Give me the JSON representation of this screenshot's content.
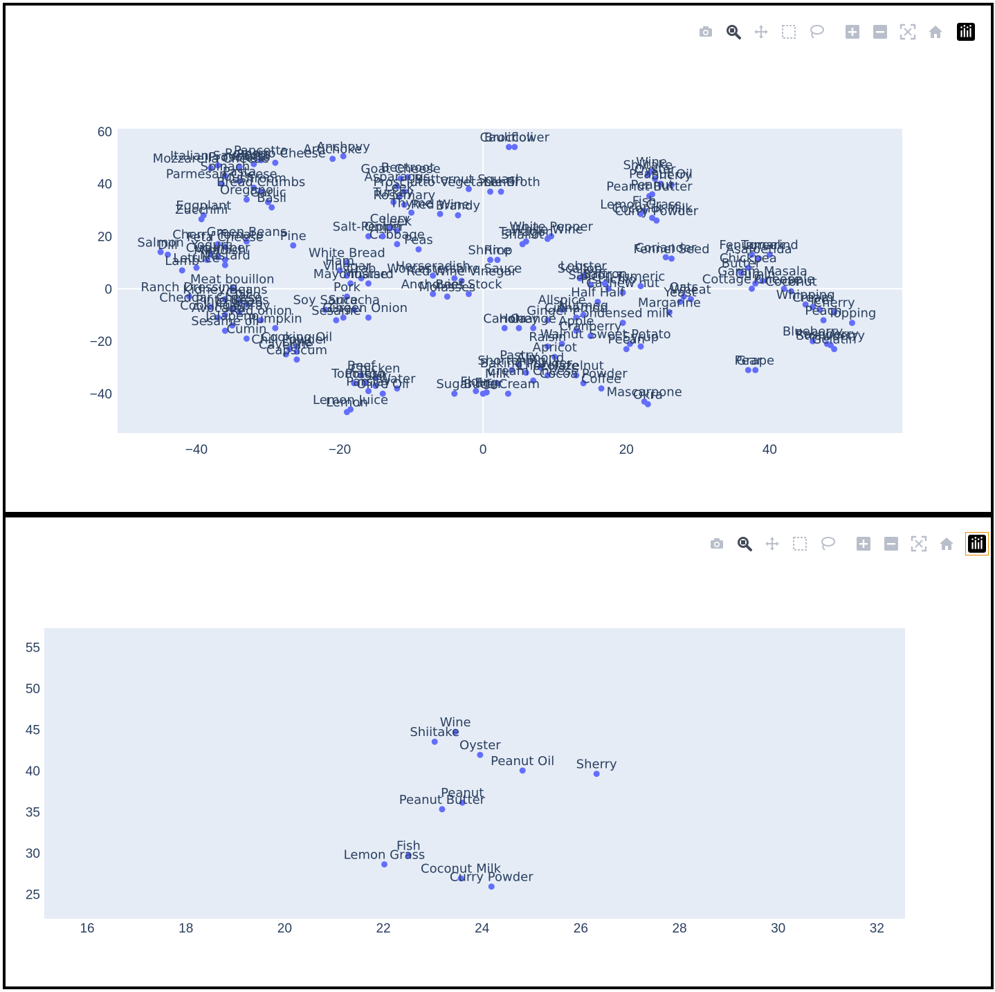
{
  "modebar": {
    "top": [
      "camera-icon",
      "zoom-icon",
      "pan-icon",
      "box-select-icon",
      "lasso-select-icon",
      "zoom-in-icon",
      "zoom-out-icon",
      "autoscale-icon",
      "reset-axes-icon",
      "plotly-logo-icon"
    ],
    "bottom": [
      "camera-icon",
      "zoom-icon",
      "pan-icon",
      "box-select-icon",
      "lasso-select-icon",
      "zoom-in-icon",
      "zoom-out-icon",
      "autoscale-icon",
      "reset-axes-icon",
      "plotly-logo-icon"
    ]
  },
  "colors": {
    "plot_bg": "#e5ecf6",
    "marker": "#636efa",
    "text": "#2a3f5f",
    "grid": "#ffffff",
    "modebar_icon": "#b9bfca",
    "modebar_active": "#444a58",
    "logo_bg": "#000000",
    "logo_border": "#e68a00"
  },
  "chart_data": [
    {
      "type": "scatter",
      "title": "",
      "xlabel": "",
      "ylabel": "",
      "xlim": [
        -51,
        58.5
      ],
      "ylim": [
        -55,
        61
      ],
      "xticks": [
        -40,
        -20,
        0,
        20,
        40
      ],
      "yticks": [
        -40,
        -20,
        0,
        20,
        40,
        60
      ],
      "grid": "zero lines",
      "points": [
        {
          "label": "Broccoli",
          "x": 3.6,
          "y": 54
        },
        {
          "label": "Cauliflower",
          "x": 4.4,
          "y": 54
        },
        {
          "label": "Anchovy",
          "x": -19.5,
          "y": 50.5
        },
        {
          "label": "Artichoke",
          "x": -21,
          "y": 49.5
        },
        {
          "label": "Pancetta",
          "x": -31,
          "y": 49
        },
        {
          "label": "Romano Cheese",
          "x": -29,
          "y": 48
        },
        {
          "label": "Pesto",
          "x": -32,
          "y": 47.5
        },
        {
          "label": "Italian Sausage",
          "x": -37,
          "y": 47
        },
        {
          "label": "Prosciutto",
          "x": -34,
          "y": 46.5
        },
        {
          "label": "Mozzarella Cheese",
          "x": -38,
          "y": 46
        },
        {
          "label": "Spinach",
          "x": -36,
          "y": 43
        },
        {
          "label": "Pasta",
          "x": -34,
          "y": 41
        },
        {
          "label": "Mushroom",
          "x": -32,
          "y": 38.5
        },
        {
          "label": "Parmesan Cheese",
          "x": -36.5,
          "y": 40
        },
        {
          "label": "Bread Crumbs",
          "x": -31,
          "y": 37
        },
        {
          "label": "Oregano",
          "x": -33,
          "y": 34
        },
        {
          "label": "Garlic",
          "x": -30,
          "y": 33
        },
        {
          "label": "Basil",
          "x": -29.5,
          "y": 31
        },
        {
          "label": "Eggplant",
          "x": -39,
          "y": 28
        },
        {
          "label": "Zucchini",
          "x": -39.3,
          "y": 26.5
        },
        {
          "label": "Goat Cheese",
          "x": -11.5,
          "y": 42
        },
        {
          "label": "Beetroot",
          "x": -10.5,
          "y": 42.5
        },
        {
          "label": "Asparagus",
          "x": -12,
          "y": 39
        },
        {
          "label": "Prosciutto",
          "x": -11,
          "y": 37
        },
        {
          "label": "Butternut Squash",
          "x": -2,
          "y": 38
        },
        {
          "label": "Vegetable Broth",
          "x": 1,
          "y": 37
        },
        {
          "label": "Lentil",
          "x": 2.5,
          "y": 37
        },
        {
          "label": "Leek",
          "x": -11.7,
          "y": 35
        },
        {
          "label": "Turkey",
          "x": -12.5,
          "y": 33
        },
        {
          "label": "Rosemary",
          "x": -11,
          "y": 32
        },
        {
          "label": "Thyme",
          "x": -10,
          "y": 29
        },
        {
          "label": "Red Wine",
          "x": -6,
          "y": 28.5
        },
        {
          "label": "Brandy",
          "x": -3.5,
          "y": 28
        },
        {
          "label": "Salt-Pepper",
          "x": -16,
          "y": 20
        },
        {
          "label": "Celery",
          "x": -13,
          "y": 23
        },
        {
          "label": "Leek",
          "x": -12,
          "y": 22
        },
        {
          "label": "Cabbage",
          "x": -12,
          "y": 17
        },
        {
          "label": "Peas",
          "x": -9,
          "y": 15
        },
        {
          "label": "Onion",
          "x": -14,
          "y": 20
        },
        {
          "label": "Pine",
          "x": -26.5,
          "y": 16.5
        },
        {
          "label": "Green Beans",
          "x": -33,
          "y": 18
        },
        {
          "label": "Feta Cheese",
          "x": -36,
          "y": 16
        },
        {
          "label": "Cherry Tomato",
          "x": -37,
          "y": 17
        },
        {
          "label": "Salmon",
          "x": -45,
          "y": 14
        },
        {
          "label": "Dill",
          "x": -44,
          "y": 13
        },
        {
          "label": "Yogurt",
          "x": -38,
          "y": 13
        },
        {
          "label": "Cucumber",
          "x": -37,
          "y": 12
        },
        {
          "label": "Radish",
          "x": -36,
          "y": 11
        },
        {
          "label": "Mint",
          "x": -38.5,
          "y": 11
        },
        {
          "label": "Lamb",
          "x": -42,
          "y": 7
        },
        {
          "label": "Lettuce",
          "x": -40,
          "y": 8
        },
        {
          "label": "Mustard",
          "x": -36,
          "y": 9
        },
        {
          "label": "White Bread",
          "x": -19,
          "y": 10
        },
        {
          "label": "Ham",
          "x": -20,
          "y": 7
        },
        {
          "label": "Crab",
          "x": -17,
          "y": 4
        },
        {
          "label": "Mayonnaise",
          "x": -18.5,
          "y": 2
        },
        {
          "label": "Vinegar",
          "x": -19,
          "y": 5
        },
        {
          "label": "Mustard",
          "x": -16,
          "y": 2
        },
        {
          "label": "Horseradish",
          "x": -7,
          "y": 5
        },
        {
          "label": "Worcestershire Sauce",
          "x": -4,
          "y": 4
        },
        {
          "label": "Red Wine Vinegar",
          "x": -3,
          "y": 3
        },
        {
          "label": "Anchovies",
          "x": -7,
          "y": -2
        },
        {
          "label": "Molasses",
          "x": -5,
          "y": -3
        },
        {
          "label": "Beef Stock",
          "x": -2,
          "y": -2
        },
        {
          "label": "White Pepper",
          "x": 9.5,
          "y": 20
        },
        {
          "label": "White Wine",
          "x": 9,
          "y": 19
        },
        {
          "label": "Tarragon",
          "x": 6,
          "y": 18
        },
        {
          "label": "Shallot",
          "x": 5.5,
          "y": 17
        },
        {
          "label": "Shrimp",
          "x": 1,
          "y": 11
        },
        {
          "label": "Rice",
          "x": 2,
          "y": 11
        },
        {
          "label": "Wine",
          "x": 23.5,
          "y": 44.7
        },
        {
          "label": "Shiitake",
          "x": 23,
          "y": 43.5
        },
        {
          "label": "Oyster",
          "x": 24,
          "y": 41.9
        },
        {
          "label": "Peanut Oil",
          "x": 24.8,
          "y": 40
        },
        {
          "label": "Sherry",
          "x": 26.3,
          "y": 39.6
        },
        {
          "label": "Peanut",
          "x": 23.6,
          "y": 36
        },
        {
          "label": "Peanut Butter",
          "x": 23.2,
          "y": 35.3
        },
        {
          "label": "Fish",
          "x": 22.5,
          "y": 29.7
        },
        {
          "label": "Lemon Grass",
          "x": 22,
          "y": 28.5
        },
        {
          "label": "Coconut Milk",
          "x": 23.6,
          "y": 27
        },
        {
          "label": "Curry Powder",
          "x": 24.2,
          "y": 26
        },
        {
          "label": "Coriander",
          "x": 25.5,
          "y": 12
        },
        {
          "label": "Fennel Seed",
          "x": 26.3,
          "y": 11.5
        },
        {
          "label": "Lobster",
          "x": 14,
          "y": 5
        },
        {
          "label": "Scallop",
          "x": 13.5,
          "y": 4
        },
        {
          "label": "Saffron",
          "x": 15,
          "y": 1.5
        },
        {
          "label": "Pistachio",
          "x": 17.5,
          "y": 0
        },
        {
          "label": "Cashew nut",
          "x": 19.5,
          "y": -1.5
        },
        {
          "label": "Saffron",
          "x": 17,
          "y": 2
        },
        {
          "label": "Tumeric",
          "x": 22,
          "y": 1
        },
        {
          "label": "Oats",
          "x": 28,
          "y": -3
        },
        {
          "label": "Wheat",
          "x": 29,
          "y": -4
        },
        {
          "label": "Yeast",
          "x": 27.5,
          "y": -5
        },
        {
          "label": "Margarine",
          "x": 26,
          "y": -9
        },
        {
          "label": "Fenugreek",
          "x": 37.5,
          "y": 13
        },
        {
          "label": "Tamarind",
          "x": 40,
          "y": 13
        },
        {
          "label": "Asafoetida",
          "x": 38.5,
          "y": 11.5
        },
        {
          "label": "Chickpea",
          "x": 37,
          "y": 8
        },
        {
          "label": "Butter",
          "x": 36,
          "y": 6
        },
        {
          "label": "Garam Masala",
          "x": 39,
          "y": 3
        },
        {
          "label": "Cottage Cheese",
          "x": 37.5,
          "y": 0
        },
        {
          "label": "Cumin",
          "x": 38,
          "y": 2
        },
        {
          "label": "Pineapple",
          "x": 42,
          "y": 0
        },
        {
          "label": "Coconut",
          "x": 43,
          "y": -1
        },
        {
          "label": "Whipping",
          "x": 45,
          "y": -6
        },
        {
          "label": "Cream",
          "x": 46,
          "y": -7
        },
        {
          "label": "Ice",
          "x": 47,
          "y": -8
        },
        {
          "label": "Cherry",
          "x": 49,
          "y": -9
        },
        {
          "label": "Peach",
          "x": 47.5,
          "y": -12
        },
        {
          "label": "Topping",
          "x": 51.5,
          "y": -13
        },
        {
          "label": "Blueberry",
          "x": 46,
          "y": -20
        },
        {
          "label": "Raspberry",
          "x": 48,
          "y": -21
        },
        {
          "label": "Strawberry",
          "x": 48.5,
          "y": -21.5
        },
        {
          "label": "Gelatin",
          "x": 49,
          "y": -23
        },
        {
          "label": "Pear",
          "x": 37,
          "y": -31
        },
        {
          "label": "Grape",
          "x": 38,
          "y": -31
        },
        {
          "label": "Half Half",
          "x": 16,
          "y": -5
        },
        {
          "label": "Allspice",
          "x": 11,
          "y": -8
        },
        {
          "label": "Condensed milk",
          "x": 19.5,
          "y": -13
        },
        {
          "label": "Nutmeg",
          "x": 14,
          "y": -10
        },
        {
          "label": "Cinnamon",
          "x": 13,
          "y": -11
        },
        {
          "label": "Ginger",
          "x": 9,
          "y": -12
        },
        {
          "label": "Orange",
          "x": 7,
          "y": -15
        },
        {
          "label": "Honey",
          "x": 5,
          "y": -15
        },
        {
          "label": "Canola",
          "x": 3,
          "y": -15
        },
        {
          "label": "Apple",
          "x": 13,
          "y": -16
        },
        {
          "label": "Cranberry",
          "x": 15,
          "y": -18
        },
        {
          "label": "Sweet Potato",
          "x": 20.5,
          "y": -21
        },
        {
          "label": "Syrup",
          "x": 22,
          "y": -22
        },
        {
          "label": "Pecan",
          "x": 20,
          "y": -23
        },
        {
          "label": "Walnut",
          "x": 11,
          "y": -21
        },
        {
          "label": "Raisin",
          "x": 9,
          "y": -22
        },
        {
          "label": "Apricot",
          "x": 10,
          "y": -26
        },
        {
          "label": "Pastry",
          "x": 5,
          "y": -29
        },
        {
          "label": "Almond",
          "x": 8,
          "y": -30
        },
        {
          "label": "Shortening",
          "x": 4,
          "y": -31
        },
        {
          "label": "Baking Powder",
          "x": 6,
          "y": -32
        },
        {
          "label": "Chocolate",
          "x": 9,
          "y": -33
        },
        {
          "label": "Milk",
          "x": 2,
          "y": -36
        },
        {
          "label": "Cream Cheese",
          "x": 7,
          "y": -35
        },
        {
          "label": "Hazelnut",
          "x": 13,
          "y": -33
        },
        {
          "label": "Cocoa Powder",
          "x": 14,
          "y": -36
        },
        {
          "label": "Coffee",
          "x": 16.5,
          "y": -38
        },
        {
          "label": "Mascarpone",
          "x": 22.5,
          "y": -43
        },
        {
          "label": "Okra",
          "x": 23,
          "y": -44
        },
        {
          "label": "Flour",
          "x": -1,
          "y": -39
        },
        {
          "label": "Butter",
          "x": 0,
          "y": -40
        },
        {
          "label": "Egg",
          "x": 0.5,
          "y": -39.5
        },
        {
          "label": "Ice Cream",
          "x": 3.5,
          "y": -40
        },
        {
          "label": "Sugar",
          "x": -4,
          "y": -40
        },
        {
          "label": "Meat bouillon",
          "x": -35,
          "y": 0
        },
        {
          "label": "Ranch Dressing",
          "x": -41,
          "y": -3
        },
        {
          "label": "Kidney Beans",
          "x": -36,
          "y": -4
        },
        {
          "label": "Chili",
          "x": -34,
          "y": -5
        },
        {
          "label": "Taco",
          "x": -33,
          "y": -6
        },
        {
          "label": "Cheddar Cheese",
          "x": -38,
          "y": -7
        },
        {
          "label": "Pinto Beans",
          "x": -35,
          "y": -8
        },
        {
          "label": "Chorizo",
          "x": -34,
          "y": -9
        },
        {
          "label": "Cooking Spray",
          "x": -36,
          "y": -10
        },
        {
          "label": "Avocado",
          "x": -37,
          "y": -11
        },
        {
          "label": "Jalapeno",
          "x": -35,
          "y": -14
        },
        {
          "label": "Red onion",
          "x": -31,
          "y": -12
        },
        {
          "label": "Pumpkin",
          "x": -29,
          "y": -15
        },
        {
          "label": "Sesame oil",
          "x": -36,
          "y": -16
        },
        {
          "label": "Cooking Oil",
          "x": -26,
          "y": -22
        },
        {
          "label": "Chili Powder",
          "x": -27,
          "y": -23
        },
        {
          "label": "Lime",
          "x": -26,
          "y": -24
        },
        {
          "label": "Cayenne",
          "x": -27.5,
          "y": -25
        },
        {
          "label": "Capsicum",
          "x": -26,
          "y": -27
        },
        {
          "label": "Cumin",
          "x": -33,
          "y": -19
        },
        {
          "label": "Pork",
          "x": -19,
          "y": -3
        },
        {
          "label": "Soy Sauce",
          "x": -22,
          "y": -8
        },
        {
          "label": "Sriracha",
          "x": -18,
          "y": -8
        },
        {
          "label": "Green Onion",
          "x": -16,
          "y": -11
        },
        {
          "label": "Ginger",
          "x": -19.5,
          "y": -11
        },
        {
          "label": "Sesame",
          "x": -20.5,
          "y": -12
        },
        {
          "label": "Beef",
          "x": -17,
          "y": -33
        },
        {
          "label": "Chicken",
          "x": -15,
          "y": -34
        },
        {
          "label": "Tomato",
          "x": -18,
          "y": -36
        },
        {
          "label": "Potato",
          "x": -16.5,
          "y": -36
        },
        {
          "label": "Salt",
          "x": -15,
          "y": -37
        },
        {
          "label": "Water",
          "x": -12,
          "y": -38
        },
        {
          "label": "Parsley",
          "x": -16,
          "y": -39
        },
        {
          "label": "Olive Oil",
          "x": -14,
          "y": -40
        },
        {
          "label": "Lemon",
          "x": -19,
          "y": -47
        },
        {
          "label": "Lemon Juice",
          "x": -18.5,
          "y": -46
        }
      ]
    },
    {
      "type": "scatter",
      "title": "",
      "xlabel": "",
      "ylabel": "",
      "xlim": [
        15.13,
        32.57
      ],
      "ylim": [
        22,
        57.3
      ],
      "xticks": [
        16,
        18,
        20,
        22,
        24,
        26,
        28,
        30,
        32
      ],
      "yticks": [
        25,
        30,
        35,
        40,
        45,
        50,
        55
      ],
      "grid": "off",
      "points": [
        {
          "label": "Wine",
          "x": 23.46,
          "y": 44.7
        },
        {
          "label": "Shiitake",
          "x": 23.04,
          "y": 43.5
        },
        {
          "label": "Oyster",
          "x": 23.96,
          "y": 41.9
        },
        {
          "label": "Peanut Oil",
          "x": 24.82,
          "y": 40.0
        },
        {
          "label": "Sherry",
          "x": 26.32,
          "y": 39.6
        },
        {
          "label": "Peanut",
          "x": 23.6,
          "y": 36.1
        },
        {
          "label": "Peanut Butter",
          "x": 23.19,
          "y": 35.3
        },
        {
          "label": "Fish",
          "x": 22.51,
          "y": 29.7
        },
        {
          "label": "Lemon Grass",
          "x": 22.02,
          "y": 28.6
        },
        {
          "label": "Coconut Milk",
          "x": 23.57,
          "y": 26.9
        },
        {
          "label": "Curry Powder",
          "x": 24.19,
          "y": 25.9
        }
      ]
    }
  ]
}
